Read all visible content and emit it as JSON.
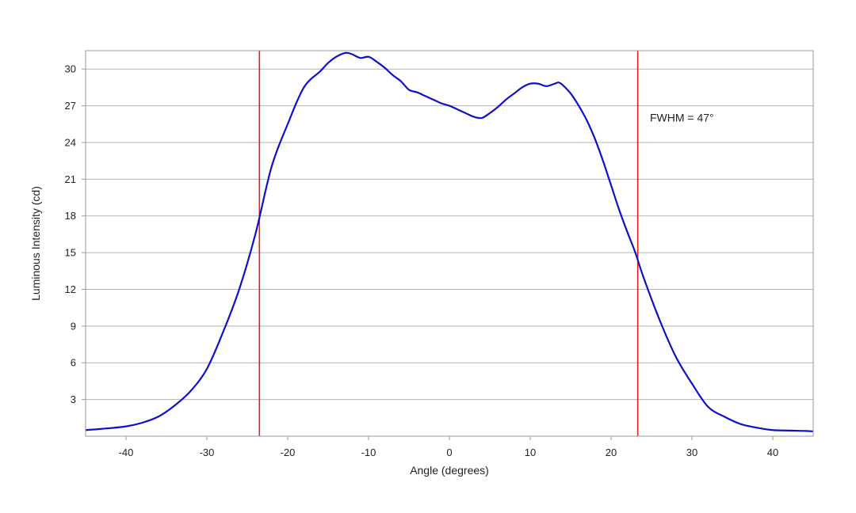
{
  "chart_data": {
    "type": "line",
    "title": "",
    "xlabel": "Angle (degrees)",
    "ylabel": "Luminous Intensity (cd)",
    "xlim": [
      -45,
      45
    ],
    "ylim": [
      0,
      31.5
    ],
    "x_ticks": [
      -40,
      -30,
      -20,
      -10,
      0,
      10,
      20,
      30,
      40
    ],
    "x_tick_labels": [
      "-40",
      "-30",
      "-20",
      "-10",
      "0",
      "10",
      "20",
      "30",
      "40"
    ],
    "y_ticks": [
      3,
      6,
      9,
      12,
      15,
      18,
      21,
      24,
      27,
      30
    ],
    "y_tick_labels": [
      "3",
      "6",
      "9",
      "12",
      "15",
      "18",
      "21",
      "24",
      "27",
      "30"
    ],
    "grid": "horizontal",
    "legend": "none",
    "series": [
      {
        "color": "#1010c8",
        "x": [
          -45,
          -43,
          -40,
          -38,
          -36,
          -34,
          -32,
          -30,
          -28,
          -26,
          -24,
          -22,
          -20,
          -18,
          -16,
          -15,
          -14,
          -13,
          -12.5,
          -12,
          -11,
          -10,
          -9,
          -8,
          -7,
          -6,
          -5,
          -4,
          -3,
          -2,
          -1,
          0,
          1,
          2,
          3,
          4,
          5,
          6,
          7,
          8,
          9,
          10,
          11,
          12,
          13,
          13.5,
          14,
          15,
          16,
          17,
          18,
          19,
          20,
          21,
          22,
          23,
          24,
          26,
          28,
          30,
          32,
          34,
          36,
          38,
          40,
          43,
          45
        ],
        "y": [
          0.5,
          0.6,
          0.8,
          1.1,
          1.6,
          2.5,
          3.7,
          5.5,
          8.5,
          12.0,
          16.5,
          22.0,
          25.5,
          28.5,
          29.8,
          30.5,
          31.0,
          31.3,
          31.3,
          31.2,
          30.9,
          31.0,
          30.6,
          30.1,
          29.5,
          29.0,
          28.3,
          28.1,
          27.8,
          27.5,
          27.2,
          27.0,
          26.7,
          26.4,
          26.1,
          26.0,
          26.4,
          26.9,
          27.5,
          28.0,
          28.5,
          28.8,
          28.8,
          28.6,
          28.8,
          28.9,
          28.7,
          28.0,
          27.0,
          25.8,
          24.3,
          22.5,
          20.5,
          18.5,
          16.7,
          15.0,
          13.0,
          9.5,
          6.5,
          4.3,
          2.4,
          1.6,
          1.0,
          0.7,
          0.5,
          0.45,
          0.4
        ]
      }
    ],
    "annotations": {
      "vlines": [
        -23.5,
        23.3
      ],
      "vline_color": "#e02020",
      "text": "FWHM = 47°",
      "text_x": 24.8,
      "text_y": 25.7
    }
  }
}
